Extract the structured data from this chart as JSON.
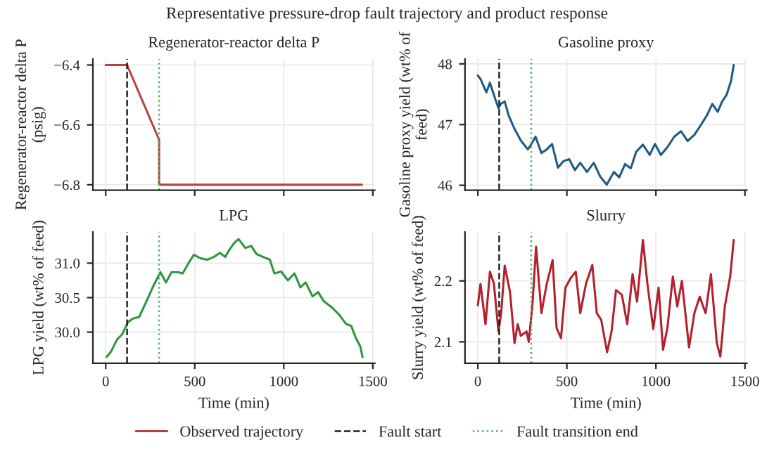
{
  "chart_data": [
    {
      "type": "line",
      "title": "Regenerator-reactor delta P",
      "ylabel": "Regenerator-reactor delta P\n(psig)",
      "annotations": [
        "Representative pressure-drop fault trajectory and product response"
      ],
      "xlim": [
        -72,
        1511
      ],
      "xticks": [
        0,
        500,
        1000,
        1500
      ],
      "ylim": [
        -6.818,
        -6.38
      ],
      "yticks": [
        {
          "value": -6.4,
          "label": "−6.4"
        },
        {
          "value": -6.6,
          "label": "−6.6"
        },
        {
          "value": -6.8,
          "label": "−6.8"
        }
      ],
      "tick_labels": "y",
      "grid": true,
      "legend": "bottom",
      "series": [
        {
          "name": "Observed trajectory",
          "color": "#b5423f",
          "x": [
            0,
            120,
            300,
            300,
            1439
          ],
          "values": [
            -6.4,
            -6.4,
            -6.65,
            -6.8,
            -6.8
          ]
        }
      ],
      "ref_lines": [
        {
          "axis": "x",
          "value": 120,
          "label": "Fault start",
          "color": "#222222",
          "line_style": "dashed"
        },
        {
          "axis": "x",
          "value": 300,
          "label": "Fault transition end",
          "color": "#4daf6a",
          "line_style": "dotted"
        }
      ]
    },
    {
      "type": "line",
      "title": "Gasoline proxy",
      "ylabel": "Gasoline proxy yield (wt% of\nfeed)",
      "xlim": [
        -72,
        1511
      ],
      "xticks": [
        0,
        500,
        1000,
        1500
      ],
      "ylim": [
        45.92,
        48.08
      ],
      "yticks": [
        46,
        47,
        48
      ],
      "tick_labels": "y",
      "grid": true,
      "series": [
        {
          "color": "#1f5a85",
          "x": [
            0,
            15,
            48,
            68,
            98,
            116,
            128,
            151,
            173,
            206,
            241,
            281,
            299,
            324,
            357,
            387,
            417,
            450,
            482,
            513,
            545,
            575,
            613,
            651,
            688,
            724,
            764,
            794,
            827,
            859,
            889,
            927,
            965,
            995,
            1028,
            1065,
            1103,
            1141,
            1178,
            1216,
            1254,
            1286,
            1317,
            1347,
            1372,
            1397,
            1422,
            1437
          ],
          "values": [
            47.81,
            47.75,
            47.53,
            47.69,
            47.42,
            47.27,
            47.34,
            47.38,
            47.15,
            46.93,
            46.74,
            46.59,
            46.67,
            46.8,
            46.53,
            46.59,
            46.68,
            46.29,
            46.4,
            46.43,
            46.25,
            46.37,
            46.22,
            46.37,
            46.14,
            46.01,
            46.22,
            46.13,
            46.35,
            46.28,
            46.55,
            46.67,
            46.5,
            46.68,
            46.5,
            46.63,
            46.8,
            46.89,
            46.73,
            46.83,
            47.0,
            47.15,
            47.34,
            47.21,
            47.38,
            47.49,
            47.72,
            47.98
          ]
        }
      ],
      "ref_lines": [
        {
          "axis": "x",
          "value": 120,
          "color": "#222222",
          "line_style": "dashed"
        },
        {
          "axis": "x",
          "value": 300,
          "color": "#4daf6a",
          "line_style": "dotted"
        }
      ]
    },
    {
      "type": "line",
      "title": "LPG",
      "xlabel": "Time (min)",
      "ylabel": "LPG yield (wt% of feed)",
      "xlim": [
        -72,
        1511
      ],
      "xticks": [
        0,
        500,
        1000,
        1500
      ],
      "ylim": [
        29.55,
        31.45
      ],
      "yticks": [
        {
          "value": 30,
          "label": "30.0"
        },
        {
          "value": 30.5,
          "label": "30.5"
        },
        {
          "value": 31,
          "label": "31.0"
        }
      ],
      "grid": true,
      "series": [
        {
          "color": "#2e9640",
          "x": [
            5,
            30,
            63,
            93,
            126,
            156,
            188,
            224,
            264,
            307,
            339,
            369,
            407,
            432,
            465,
            495,
            533,
            570,
            608,
            641,
            671,
            696,
            721,
            746,
            784,
            817,
            847,
            884,
            922,
            947,
            985,
            1023,
            1060,
            1093,
            1123,
            1161,
            1193,
            1224,
            1274,
            1312,
            1349,
            1379,
            1404,
            1430,
            1442
          ],
          "values": [
            29.64,
            29.72,
            29.89,
            29.97,
            30.15,
            30.2,
            30.22,
            30.42,
            30.65,
            30.87,
            30.72,
            30.87,
            30.87,
            30.85,
            31.0,
            31.12,
            31.07,
            31.05,
            31.09,
            31.15,
            31.09,
            31.2,
            31.29,
            31.35,
            31.22,
            31.25,
            31.13,
            31.09,
            31.05,
            30.85,
            30.88,
            30.75,
            30.85,
            30.65,
            30.72,
            30.52,
            30.58,
            30.45,
            30.35,
            30.25,
            30.12,
            30.09,
            29.92,
            29.79,
            29.64
          ]
        }
      ],
      "ref_lines": [
        {
          "axis": "x",
          "value": 120,
          "color": "#222222",
          "line_style": "dashed"
        },
        {
          "axis": "x",
          "value": 300,
          "color": "#4daf6a",
          "line_style": "dotted"
        }
      ]
    },
    {
      "type": "line",
      "title": "Slurry",
      "xlabel": "Time (min)",
      "ylabel": "Slurry yield (wt% of feed)",
      "xlim": [
        -72,
        1511
      ],
      "xticks": [
        0,
        500,
        1000,
        1500
      ],
      "ylim": [
        2.065,
        2.28
      ],
      "yticks": [
        2.1,
        2.2
      ],
      "grid": true,
      "series": [
        {
          "color": "#b3202e",
          "x": [
            0,
            15,
            43,
            68,
            90,
            116,
            131,
            151,
            181,
            206,
            224,
            241,
            274,
            286,
            307,
            327,
            357,
            387,
            420,
            442,
            467,
            492,
            520,
            550,
            575,
            608,
            643,
            668,
            693,
            726,
            751,
            776,
            809,
            839,
            869,
            894,
            927,
            952,
            985,
            1015,
            1040,
            1065,
            1095,
            1120,
            1146,
            1186,
            1216,
            1246,
            1279,
            1309,
            1342,
            1362,
            1387,
            1417,
            1437
          ],
          "values": [
            2.16,
            2.195,
            2.129,
            2.215,
            2.196,
            2.117,
            2.147,
            2.225,
            2.181,
            2.098,
            2.129,
            2.11,
            2.117,
            2.1,
            2.162,
            2.256,
            2.147,
            2.195,
            2.234,
            2.123,
            2.106,
            2.189,
            2.204,
            2.215,
            2.147,
            2.196,
            2.226,
            2.147,
            2.136,
            2.083,
            2.117,
            2.185,
            2.177,
            2.129,
            2.211,
            2.166,
            2.267,
            2.196,
            2.121,
            2.189,
            2.087,
            2.124,
            2.207,
            2.158,
            2.2,
            2.091,
            2.147,
            2.174,
            2.147,
            2.211,
            2.098,
            2.076,
            2.158,
            2.207,
            2.267
          ]
        }
      ],
      "ref_lines": [
        {
          "axis": "x",
          "value": 120,
          "color": "#222222",
          "line_style": "dashed"
        },
        {
          "axis": "x",
          "value": 300,
          "color": "#4daf6a",
          "line_style": "dotted"
        }
      ]
    }
  ]
}
